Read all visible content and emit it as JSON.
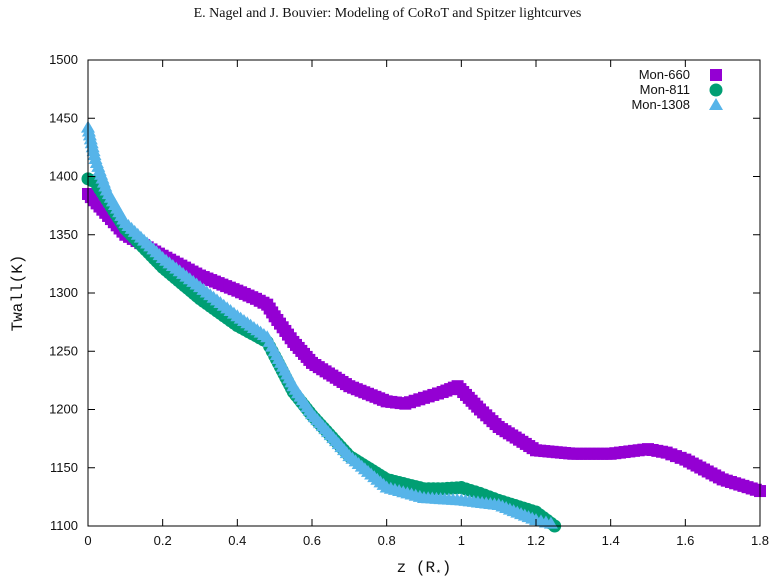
{
  "header": {
    "running_title": "E. Nagel and J. Bouvier: Modeling of CoRoT and Spitzer lightcurves"
  },
  "chart_data": {
    "type": "scatter",
    "title": "",
    "xlabel": "z (R",
    "xlabel_subscript": "⋆",
    "xlabel_close": ")",
    "ylabel": "Twall(K)",
    "xlim": [
      0,
      1.8
    ],
    "ylim": [
      1100,
      1500
    ],
    "xticks": [
      0,
      0.2,
      0.4,
      0.6,
      0.8,
      1,
      1.2,
      1.4,
      1.6,
      1.8
    ],
    "xtick_labels": [
      "0",
      "0.2",
      "0.4",
      "0.6",
      "0.8",
      "1",
      "1.2",
      "1.4",
      "1.6",
      "1.8"
    ],
    "yticks": [
      1100,
      1150,
      1200,
      1250,
      1300,
      1350,
      1400,
      1450,
      1500
    ],
    "ytick_labels": [
      "1100",
      "1150",
      "1200",
      "1250",
      "1300",
      "1350",
      "1400",
      "1450",
      "1500"
    ],
    "legend_position": "top-right",
    "grid": false,
    "series": [
      {
        "name": "Mon-660",
        "marker": "square",
        "color": "#9400d3",
        "x": [
          0,
          0.1,
          0.2,
          0.3,
          0.4,
          0.45,
          0.48,
          0.5,
          0.55,
          0.6,
          0.7,
          0.8,
          0.85,
          0.9,
          0.95,
          0.99,
          1.05,
          1.1,
          1.2,
          1.3,
          1.4,
          1.45,
          1.5,
          1.55,
          1.6,
          1.7,
          1.8
        ],
        "y": [
          1385,
          1350,
          1332,
          1315,
          1302,
          1295,
          1290,
          1280,
          1258,
          1240,
          1220,
          1207,
          1205,
          1210,
          1215,
          1220,
          1200,
          1185,
          1165,
          1162,
          1162,
          1164,
          1166,
          1163,
          1157,
          1140,
          1130
        ]
      },
      {
        "name": "Mon-811",
        "marker": "circle",
        "color": "#009e73",
        "x": [
          0,
          0.02,
          0.05,
          0.1,
          0.2,
          0.3,
          0.4,
          0.48,
          0.5,
          0.55,
          0.6,
          0.7,
          0.8,
          0.9,
          0.95,
          1.0,
          1.05,
          1.1,
          1.2,
          1.25
        ],
        "y": [
          1398,
          1395,
          1380,
          1355,
          1322,
          1295,
          1272,
          1258,
          1246,
          1215,
          1195,
          1160,
          1140,
          1132,
          1132,
          1133,
          1128,
          1122,
          1112,
          1100
        ]
      },
      {
        "name": "Mon-1308",
        "marker": "triangle",
        "color": "#56b4e9",
        "x": [
          0,
          0.02,
          0.05,
          0.1,
          0.2,
          0.3,
          0.4,
          0.48,
          0.5,
          0.55,
          0.6,
          0.7,
          0.8,
          0.9,
          1.0,
          1.1,
          1.2,
          1.24
        ],
        "y": [
          1442,
          1415,
          1388,
          1360,
          1330,
          1305,
          1280,
          1262,
          1250,
          1220,
          1196,
          1160,
          1133,
          1124,
          1122,
          1118,
          1105,
          1102
        ]
      }
    ]
  }
}
